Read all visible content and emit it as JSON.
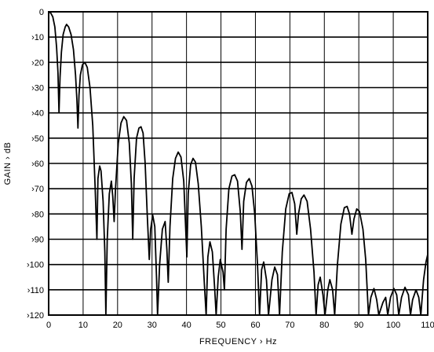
{
  "chart_data": {
    "type": "line",
    "title": "",
    "xlabel": "FREQUENCY › Hz",
    "ylabel": "GAIN › dB",
    "xlim": [
      0,
      110
    ],
    "ylim": [
      -120,
      0
    ],
    "x_ticks": [
      0,
      10,
      20,
      30,
      40,
      50,
      60,
      70,
      80,
      90,
      100,
      110
    ],
    "x_tick_labels": [
      "0",
      "10",
      "20",
      "30",
      "40",
      "50",
      "60",
      "70",
      "80",
      "90",
      "100",
      "110"
    ],
    "y_ticks": [
      0,
      -10,
      -20,
      -30,
      -40,
      -50,
      -60,
      -70,
      -80,
      -90,
      -100,
      -110,
      -120
    ],
    "y_tick_labels": [
      "0",
      "›10",
      "›20",
      "›30",
      "›40",
      "›50",
      "›60",
      "›70",
      "›80",
      "›90",
      "›100",
      "›110",
      "›120"
    ],
    "grid": true,
    "legend": "none",
    "line_color": "#000000",
    "series": [
      {
        "points": [
          [
            0,
            0
          ],
          [
            0.6,
            -0.5
          ],
          [
            1.2,
            -2
          ],
          [
            1.8,
            -6
          ],
          [
            2.3,
            -14
          ],
          [
            2.7,
            -24
          ],
          [
            3.0,
            -40
          ],
          [
            3.3,
            -26
          ],
          [
            3.7,
            -16
          ],
          [
            4.2,
            -9
          ],
          [
            4.8,
            -6
          ],
          [
            5.2,
            -5
          ],
          [
            5.8,
            -6
          ],
          [
            6.5,
            -9
          ],
          [
            7.2,
            -15
          ],
          [
            7.8,
            -25
          ],
          [
            8.2,
            -35
          ],
          [
            8.5,
            -46
          ],
          [
            8.8,
            -33
          ],
          [
            9.2,
            -25
          ],
          [
            9.8,
            -21
          ],
          [
            10.5,
            -20
          ],
          [
            11.2,
            -22
          ],
          [
            12.0,
            -30
          ],
          [
            12.8,
            -45
          ],
          [
            13.5,
            -70
          ],
          [
            14.0,
            -90
          ],
          [
            14.3,
            -66
          ],
          [
            14.8,
            -61
          ],
          [
            15.2,
            -63
          ],
          [
            15.8,
            -75
          ],
          [
            16.3,
            -95
          ],
          [
            16.6,
            -120
          ],
          [
            17.0,
            -90
          ],
          [
            17.6,
            -72
          ],
          [
            18.2,
            -67
          ],
          [
            18.6,
            -73
          ],
          [
            19.0,
            -83
          ],
          [
            19.4,
            -70
          ],
          [
            20.2,
            -52
          ],
          [
            21.0,
            -44
          ],
          [
            21.8,
            -41.5
          ],
          [
            22.6,
            -43
          ],
          [
            23.4,
            -52
          ],
          [
            24.0,
            -68
          ],
          [
            24.4,
            -90
          ],
          [
            24.8,
            -66
          ],
          [
            25.5,
            -50
          ],
          [
            26.2,
            -46
          ],
          [
            26.8,
            -45.5
          ],
          [
            27.4,
            -48
          ],
          [
            28.0,
            -60
          ],
          [
            28.6,
            -80
          ],
          [
            29.2,
            -98
          ],
          [
            29.6,
            -86
          ],
          [
            30.2,
            -80.5
          ],
          [
            30.8,
            -85
          ],
          [
            31.3,
            -105
          ],
          [
            31.6,
            -120
          ],
          [
            32.2,
            -100
          ],
          [
            33.0,
            -86
          ],
          [
            33.8,
            -83
          ],
          [
            34.3,
            -94
          ],
          [
            34.7,
            -107
          ],
          [
            35.2,
            -85
          ],
          [
            36.0,
            -66
          ],
          [
            36.8,
            -58
          ],
          [
            37.6,
            -55.5
          ],
          [
            38.4,
            -57.5
          ],
          [
            39.2,
            -67
          ],
          [
            39.8,
            -87
          ],
          [
            40.1,
            -97
          ],
          [
            40.5,
            -72
          ],
          [
            41.2,
            -60.5
          ],
          [
            41.9,
            -58
          ],
          [
            42.6,
            -59.5
          ],
          [
            43.4,
            -68
          ],
          [
            44.3,
            -85
          ],
          [
            45.2,
            -108
          ],
          [
            45.7,
            -120
          ],
          [
            46.2,
            -97
          ],
          [
            46.8,
            -91
          ],
          [
            47.5,
            -95
          ],
          [
            48.2,
            -110
          ],
          [
            48.6,
            -120
          ],
          [
            49.2,
            -105
          ],
          [
            49.8,
            -98
          ],
          [
            50.6,
            -103
          ],
          [
            51.0,
            -110
          ],
          [
            51.5,
            -86
          ],
          [
            52.3,
            -70
          ],
          [
            53.2,
            -65
          ],
          [
            54.0,
            -64.5
          ],
          [
            54.8,
            -67
          ],
          [
            55.6,
            -79
          ],
          [
            56.1,
            -94
          ],
          [
            56.6,
            -75
          ],
          [
            57.4,
            -67.5
          ],
          [
            58.2,
            -66
          ],
          [
            59.0,
            -69
          ],
          [
            59.8,
            -80
          ],
          [
            60.6,
            -100
          ],
          [
            61.2,
            -120
          ],
          [
            61.8,
            -102
          ],
          [
            62.4,
            -99
          ],
          [
            63.2,
            -106
          ],
          [
            63.8,
            -120
          ],
          [
            64.8,
            -106
          ],
          [
            65.6,
            -101
          ],
          [
            66.4,
            -104
          ],
          [
            67.0,
            -120
          ],
          [
            67.8,
            -95
          ],
          [
            68.8,
            -78
          ],
          [
            69.8,
            -72
          ],
          [
            70.6,
            -71.5
          ],
          [
            71.4,
            -76
          ],
          [
            72.0,
            -88
          ],
          [
            72.5,
            -80
          ],
          [
            73.3,
            -74
          ],
          [
            74.1,
            -72.5
          ],
          [
            75.0,
            -75
          ],
          [
            76.0,
            -86
          ],
          [
            77.0,
            -103
          ],
          [
            77.6,
            -120
          ],
          [
            78.2,
            -108
          ],
          [
            78.8,
            -105
          ],
          [
            79.6,
            -112
          ],
          [
            80.2,
            -120
          ],
          [
            81.0,
            -110
          ],
          [
            81.6,
            -106
          ],
          [
            82.4,
            -110
          ],
          [
            83.0,
            -120
          ],
          [
            83.8,
            -100
          ],
          [
            84.8,
            -84
          ],
          [
            85.8,
            -77.5
          ],
          [
            86.6,
            -77
          ],
          [
            87.3,
            -80
          ],
          [
            88.0,
            -88
          ],
          [
            88.6,
            -82
          ],
          [
            89.4,
            -78
          ],
          [
            90.2,
            -79
          ],
          [
            91.2,
            -86
          ],
          [
            92.0,
            -98
          ],
          [
            92.8,
            -120
          ],
          [
            93.5,
            -113
          ],
          [
            94.4,
            -109.5
          ],
          [
            95.2,
            -114
          ],
          [
            95.8,
            -120
          ],
          [
            97.0,
            -115
          ],
          [
            97.8,
            -113
          ],
          [
            98.4,
            -120
          ],
          [
            99.2,
            -113
          ],
          [
            100.2,
            -109.5
          ],
          [
            101.0,
            -112
          ],
          [
            101.6,
            -120
          ],
          [
            102.4,
            -113
          ],
          [
            103.4,
            -109
          ],
          [
            104.4,
            -112
          ],
          [
            105.0,
            -120
          ],
          [
            105.6,
            -114
          ],
          [
            106.6,
            -110
          ],
          [
            107.4,
            -113
          ],
          [
            108.0,
            -120
          ],
          [
            108.8,
            -106
          ],
          [
            109.5,
            -99
          ],
          [
            110,
            -96
          ]
        ]
      }
    ]
  }
}
